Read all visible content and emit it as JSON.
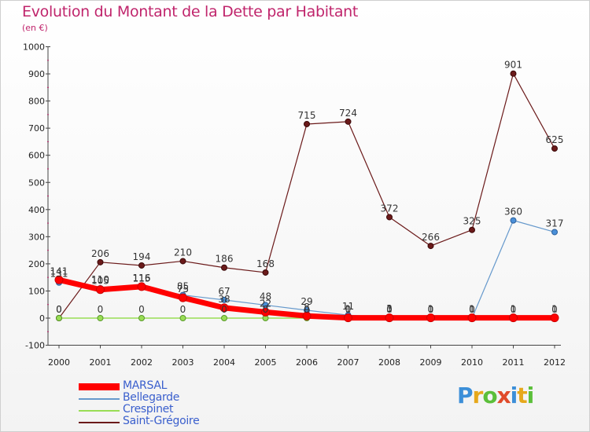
{
  "title": "Evolution du Montant de la Dette par Habitant",
  "subtitle": "(en €)",
  "logo": "Proxiti",
  "chart_data": {
    "type": "line",
    "x": [
      "2000",
      "2001",
      "2002",
      "2003",
      "2004",
      "2005",
      "2006",
      "2007",
      "2008",
      "2009",
      "2010",
      "2011",
      "2012"
    ],
    "ylim": [
      -100,
      1000
    ],
    "yticks": [
      -100,
      0,
      100,
      200,
      300,
      400,
      500,
      600,
      700,
      800,
      900,
      1000
    ],
    "grid": false,
    "legend_position": "bottom-left",
    "series": [
      {
        "name": "MARSAL",
        "color": "#ff0000",
        "values": [
          141,
          105,
          116,
          75,
          38,
          22,
          8,
          1,
          1,
          1,
          1,
          1,
          1
        ],
        "labels": [
          "141",
          "105",
          "116",
          "75",
          "38",
          "22",
          "8",
          "1",
          "1",
          "1",
          "1",
          "1",
          "1"
        ]
      },
      {
        "name": "Bellegarde",
        "color": "#6699cc",
        "values": [
          131,
          110,
          115,
          85,
          67,
          48,
          29,
          11,
          3,
          0,
          0,
          360,
          317
        ],
        "labels": [
          "131",
          "110",
          "115",
          "85",
          "67",
          "48",
          "29",
          "11",
          "3",
          "0",
          "0",
          "360",
          "317"
        ]
      },
      {
        "name": "Crespinet",
        "color": "#99dd55",
        "values": [
          0,
          0,
          0,
          0,
          0,
          0,
          0,
          0,
          0,
          0,
          0,
          0,
          0
        ],
        "labels": [
          "0",
          "0",
          "0",
          "0",
          "0",
          "0",
          "0",
          "0",
          "0",
          "0",
          "0",
          "0",
          "0"
        ]
      },
      {
        "name": "Saint-Grégoire",
        "color": "#6b1a1a",
        "values": [
          0,
          206,
          194,
          210,
          186,
          168,
          715,
          724,
          372,
          266,
          325,
          901,
          625
        ],
        "labels": [
          "0",
          "206",
          "194",
          "210",
          "186",
          "168",
          "715",
          "724",
          "372",
          "266",
          "325",
          "901",
          "625"
        ]
      }
    ]
  }
}
